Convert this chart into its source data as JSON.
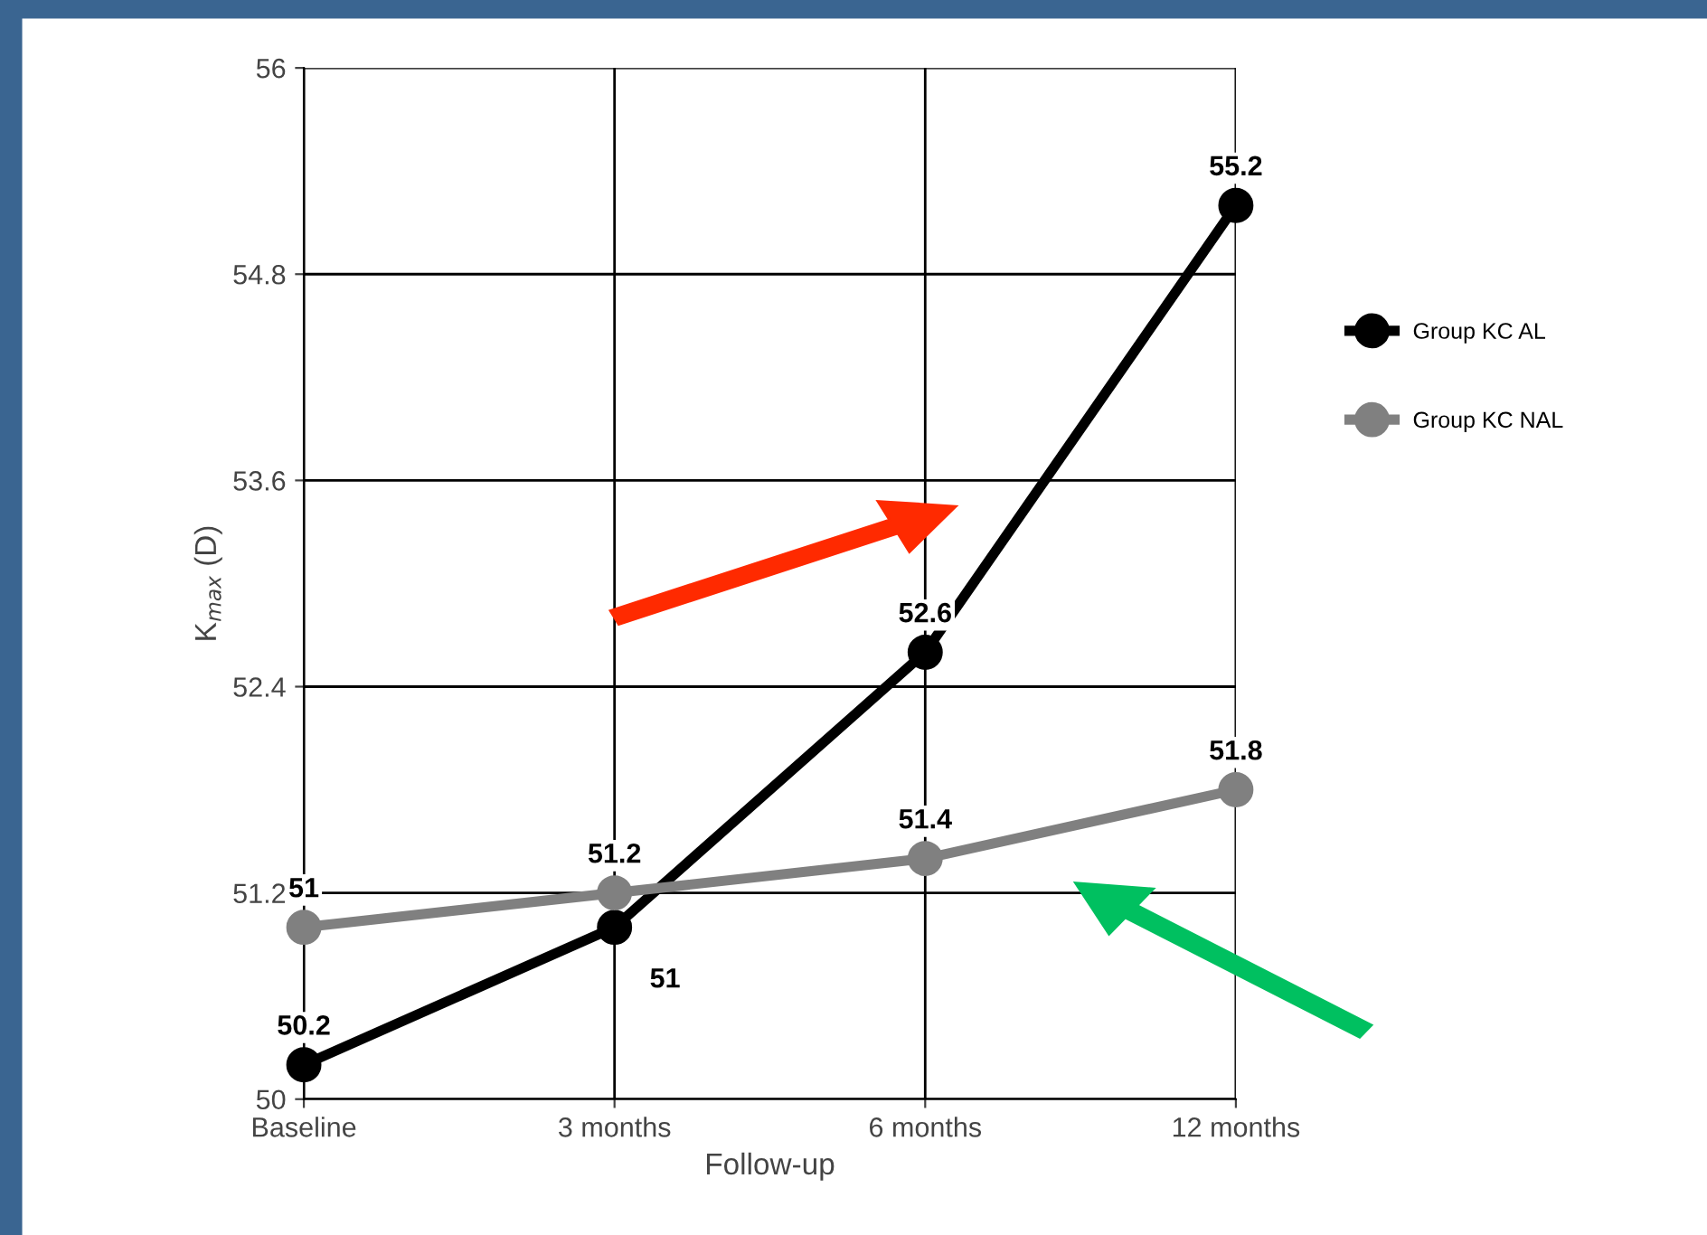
{
  "chart_data": {
    "type": "line",
    "xlabel": "Follow-up",
    "ylabel": "K$_{max}$ (D)",
    "categories": [
      "Baseline",
      "3 months",
      "6 months",
      "12 months"
    ],
    "series": [
      {
        "name": "Group KC AL",
        "color": "#000000",
        "values": [
          50.2,
          51,
          52.6,
          55.2
        ],
        "value_labels": [
          "50.2",
          "51",
          "52.6",
          "55.2"
        ]
      },
      {
        "name": "Group KC NAL",
        "color": "#808080",
        "values": [
          51,
          51.2,
          51.4,
          51.8
        ],
        "value_labels": [
          "51",
          "51.2",
          "51.4",
          "51.8"
        ]
      }
    ],
    "ylim": [
      50,
      56
    ],
    "yticks": [
      50,
      51.2,
      52.4,
      53.6,
      54.8,
      56
    ],
    "grid": true,
    "legend": "right",
    "marker": "circle",
    "line_style": "solid"
  }
}
